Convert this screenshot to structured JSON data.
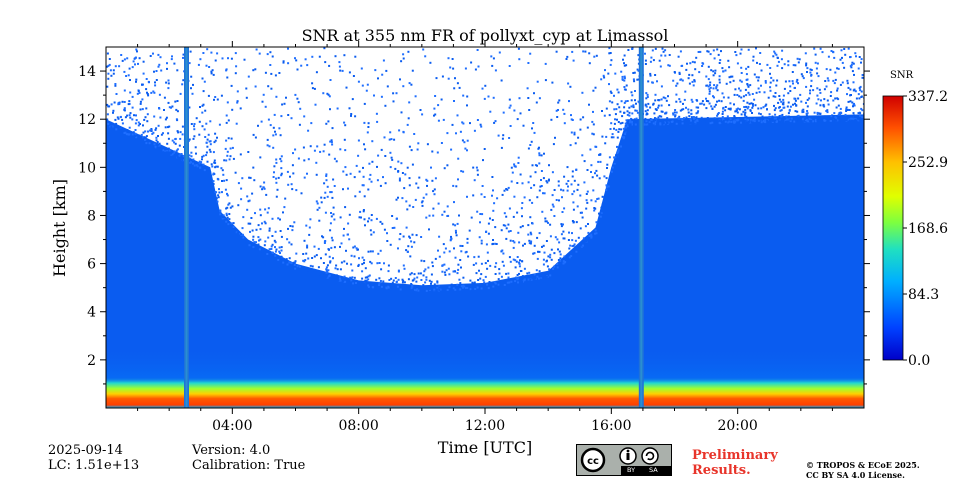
{
  "chart_data": {
    "type": "heatmap",
    "title": "SNR at 355 nm FR of pollyxt_cyp at Limassol",
    "xlabel": "Time [UTC]",
    "ylabel": "Height [km]",
    "x_range_hours": [
      0,
      24
    ],
    "y_range_km": [
      0,
      15
    ],
    "x_ticks": [
      {
        "value": 4,
        "label": "04:00"
      },
      {
        "value": 8,
        "label": "08:00"
      },
      {
        "value": 12,
        "label": "12:00"
      },
      {
        "value": 16,
        "label": "16:00"
      },
      {
        "value": 20,
        "label": "20:00"
      }
    ],
    "y_ticks": [
      {
        "value": 2,
        "label": "2"
      },
      {
        "value": 4,
        "label": "4"
      },
      {
        "value": 6,
        "label": "6"
      },
      {
        "value": 8,
        "label": "8"
      },
      {
        "value": 10,
        "label": "10"
      },
      {
        "value": 12,
        "label": "12"
      },
      {
        "value": 14,
        "label": "14"
      }
    ],
    "colorbar": {
      "label": "SNR",
      "min": 0.0,
      "max": 337.2,
      "ticks": [
        "0.0",
        "84.3",
        "168.6",
        "252.9",
        "337.2"
      ],
      "colormap": "jet"
    },
    "data_gaps_hours": [
      2.55,
      16.95
    ],
    "signal_top_km": [
      {
        "hour": 0.0,
        "km": 12.0
      },
      {
        "hour": 3.3,
        "km": 10.0
      },
      {
        "hour": 3.6,
        "km": 8.2
      },
      {
        "hour": 4.5,
        "km": 7.0
      },
      {
        "hour": 6.0,
        "km": 6.0
      },
      {
        "hour": 8.0,
        "km": 5.3
      },
      {
        "hour": 10.0,
        "km": 5.1
      },
      {
        "hour": 12.0,
        "km": 5.2
      },
      {
        "hour": 14.0,
        "km": 5.7
      },
      {
        "hour": 15.5,
        "km": 7.5
      },
      {
        "hour": 16.0,
        "km": 10.0
      },
      {
        "hour": 16.5,
        "km": 12.0
      },
      {
        "hour": 24.0,
        "km": 12.2
      }
    ],
    "surface_layer": {
      "top_km": 0.9,
      "peak_snr": 337.2
    }
  },
  "footer": {
    "date": "2025-09-14",
    "lc": "LC: 1.51e+13",
    "version": "Version: 4.0",
    "calibration": "Calibration: True",
    "preliminary_line1": "Preliminary",
    "preliminary_line2": "Results.",
    "copyright_line1": "© TROPOS & ECoE 2025.",
    "copyright_line2": "CC BY SA 4.0 License.",
    "license_badge": {
      "cc": "cc",
      "by": "BY",
      "sa": "SA"
    }
  }
}
